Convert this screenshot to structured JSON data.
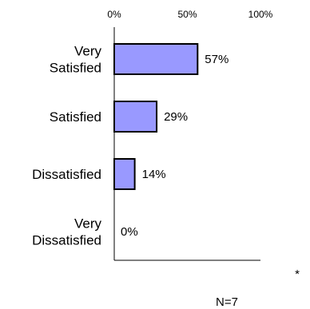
{
  "chart_data": {
    "type": "bar",
    "orientation": "horizontal",
    "categories": [
      [
        "Very",
        "Satisfied"
      ],
      [
        "Satisfied"
      ],
      [
        "Dissatisfied"
      ],
      [
        "Very",
        "Dissatisfied"
      ]
    ],
    "values": [
      57,
      29,
      14,
      0
    ],
    "value_labels": [
      "57%",
      "29%",
      "14%",
      "0%"
    ],
    "x_ticks": [
      0,
      50,
      100
    ],
    "x_tick_labels": [
      "0%",
      "50%",
      "100%"
    ],
    "xlim": [
      0,
      100
    ],
    "axis_position": "top",
    "grid": false,
    "bar_color": "#9999ff",
    "bar_edge_color": "#000000",
    "footnote": "N=7",
    "marker": "*"
  }
}
